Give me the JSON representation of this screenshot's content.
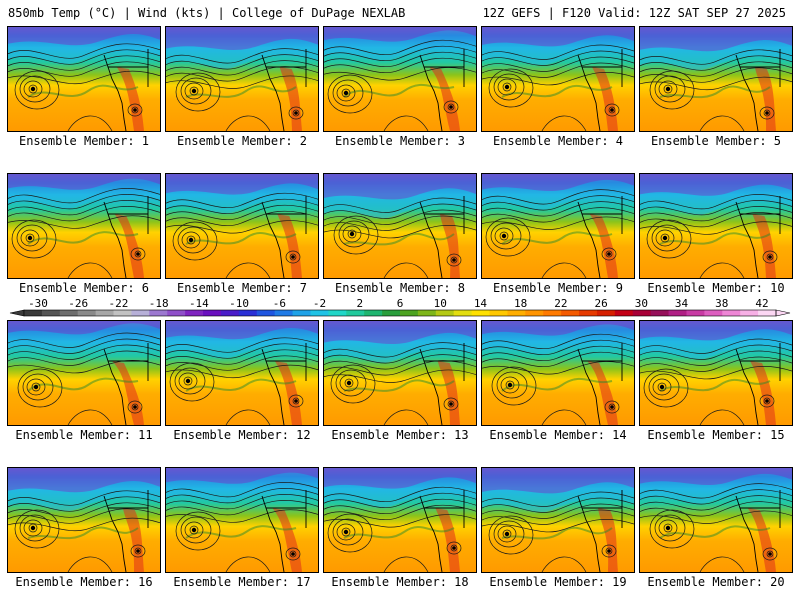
{
  "header": {
    "left": "850mb Temp (°C) | Wind (kts) | College of DuPage NEXLAB",
    "right": "12Z GEFS | F120 Valid: 12Z SAT SEP 27 2025"
  },
  "panels": [
    {
      "label": "Ensemble Member: 1"
    },
    {
      "label": "Ensemble Member: 2"
    },
    {
      "label": "Ensemble Member: 3"
    },
    {
      "label": "Ensemble Member: 4"
    },
    {
      "label": "Ensemble Member: 5"
    },
    {
      "label": "Ensemble Member: 6"
    },
    {
      "label": "Ensemble Member: 7"
    },
    {
      "label": "Ensemble Member: 8"
    },
    {
      "label": "Ensemble Member: 9"
    },
    {
      "label": "Ensemble Member: 10"
    },
    {
      "label": "Ensemble Member: 11"
    },
    {
      "label": "Ensemble Member: 12"
    },
    {
      "label": "Ensemble Member: 13"
    },
    {
      "label": "Ensemble Member: 14"
    },
    {
      "label": "Ensemble Member: 15"
    },
    {
      "label": "Ensemble Member: 16"
    },
    {
      "label": "Ensemble Member: 17"
    },
    {
      "label": "Ensemble Member: 18"
    },
    {
      "label": "Ensemble Member: 19"
    },
    {
      "label": "Ensemble Member: 20"
    }
  ],
  "colorbar": {
    "ticks": [
      "-30",
      "-26",
      "-22",
      "-18",
      "-14",
      "-10",
      "-6",
      "-2",
      "2",
      "6",
      "10",
      "14",
      "18",
      "22",
      "26",
      "30",
      "34",
      "38",
      "42"
    ],
    "colors": [
      "#3a3a3a",
      "#555555",
      "#6e6e6e",
      "#8a8a8a",
      "#a7a7a7",
      "#c2c2c2",
      "#b7b0d8",
      "#9c78d0",
      "#8f4fc9",
      "#7f24c0",
      "#6a0fbf",
      "#4a1cc9",
      "#2a2fd6",
      "#1f55e0",
      "#1f7ae6",
      "#1fa2e8",
      "#20c3e6",
      "#21d6c8",
      "#21c99c",
      "#1fb570",
      "#2a9e3d",
      "#4da321",
      "#7eb61a",
      "#b4c915",
      "#e3de10",
      "#ffe100",
      "#ffc800",
      "#ffae00",
      "#ff9400",
      "#ff7a00",
      "#f45a00",
      "#e63a00",
      "#d61f00",
      "#c40016",
      "#a80037",
      "#96105a",
      "#b01f85",
      "#c83ba4",
      "#dd5ec0",
      "#ee86d6",
      "#f7b0e6",
      "#fcd7f4"
    ]
  }
}
